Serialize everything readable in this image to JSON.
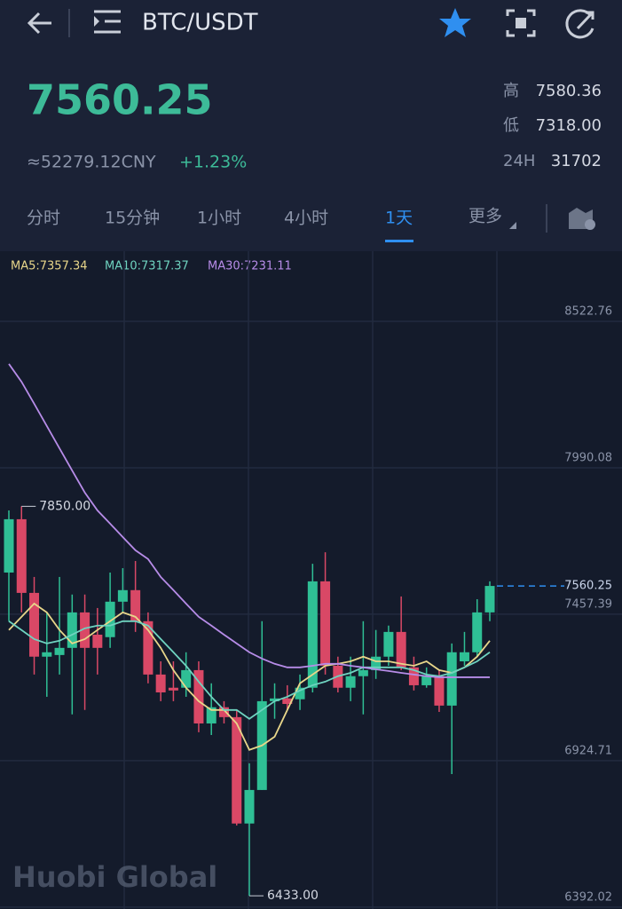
{
  "header": {
    "pair": "BTC/USDT"
  },
  "ticker": {
    "price": "7560.25",
    "cny": "≈52279.12CNY",
    "change": "+1.23%",
    "stats": [
      {
        "label": "高",
        "value": "7580.36"
      },
      {
        "label": "低",
        "value": "7318.00"
      },
      {
        "label": "24H",
        "value": "31702"
      }
    ]
  },
  "tabs": [
    "分时",
    "15分钟",
    "1小时",
    "4小时",
    "1天",
    "更多"
  ],
  "watermark": "Huobi Global",
  "chart_data": {
    "type": "candlestick",
    "open": [
      7609,
      7803,
      7535,
      7303,
      7309,
      7335,
      7464,
      7383,
      7374,
      7503,
      7545,
      7432,
      7238,
      7190,
      7190,
      7254,
      7060,
      7119,
      7083,
      6696,
      6818,
      7141,
      7151,
      7148,
      7190,
      7577,
      7270,
      7190,
      7232,
      7254,
      7303,
      7393,
      7264,
      7199,
      7232,
      7125,
      7286,
      7319,
      7464
    ],
    "high": [
      7835,
      7850,
      7593,
      7464,
      7593,
      7529,
      7529,
      7480,
      7609,
      7625,
      7651,
      7464,
      7286,
      7286,
      7319,
      7286,
      7206,
      7141,
      7109,
      6915,
      7432,
      7206,
      7199,
      7238,
      7641,
      7683,
      7303,
      7303,
      7432,
      7400,
      7416,
      7522,
      7303,
      7264,
      7254,
      7351,
      7393,
      7512,
      7577
    ],
    "low": [
      7432,
      7464,
      7238,
      7157,
      7238,
      7093,
      7109,
      7238,
      7335,
      7464,
      7393,
      7206,
      7141,
      7141,
      7157,
      7028,
      7018,
      7060,
      6689,
      6433,
      6818,
      7077,
      7109,
      7109,
      7173,
      7238,
      7173,
      7141,
      7093,
      7222,
      7270,
      7254,
      7180,
      7190,
      7102,
      6876,
      7270,
      7303,
      7432
    ],
    "close": [
      7803,
      7535,
      7303,
      7319,
      7335,
      7464,
      7335,
      7335,
      7503,
      7545,
      7432,
      7238,
      7173,
      7180,
      7254,
      7060,
      7119,
      7083,
      6696,
      6818,
      7141,
      7151,
      7131,
      7190,
      7577,
      7270,
      7190,
      7232,
      7254,
      7303,
      7393,
      7264,
      7199,
      7232,
      7125,
      7319,
      7319,
      7464,
      7560.25
    ],
    "up_color": "#2fbf95",
    "down_color": "#d94866",
    "series": [
      {
        "name": "MA5:7357.34",
        "color": "#e8d68a",
        "values": [
          7400,
          7448,
          7496,
          7464,
          7400,
          7351,
          7367,
          7400,
          7432,
          7464,
          7448,
          7400,
          7335,
          7254,
          7190,
          7141,
          7109,
          7109,
          7060,
          6964,
          6980,
          7012,
          7109,
          7206,
          7238,
          7270,
          7277,
          7286,
          7303,
          7286,
          7286,
          7277,
          7270,
          7286,
          7254,
          7244,
          7264,
          7303,
          7361
        ]
      },
      {
        "name": "MA10:7317.37",
        "color": "#6fd3c0",
        "values": [
          7432,
          7400,
          7367,
          7351,
          7361,
          7383,
          7406,
          7416,
          7416,
          7432,
          7432,
          7416,
          7367,
          7319,
          7270,
          7212,
          7157,
          7109,
          7109,
          7077,
          7109,
          7141,
          7157,
          7180,
          7199,
          7212,
          7232,
          7244,
          7264,
          7264,
          7264,
          7264,
          7254,
          7238,
          7232,
          7244,
          7264,
          7286,
          7319
        ]
      },
      {
        "name": "MA30:7231.11",
        "color": "#b78ce8",
        "values": [
          8368,
          8303,
          8223,
          8142,
          8061,
          7980,
          7900,
          7835,
          7787,
          7738,
          7690,
          7658,
          7593,
          7545,
          7496,
          7448,
          7416,
          7383,
          7351,
          7319,
          7296,
          7277,
          7264,
          7264,
          7270,
          7277,
          7277,
          7270,
          7264,
          7257,
          7251,
          7244,
          7238,
          7232,
          7228,
          7228,
          7228,
          7228,
          7228
        ]
      }
    ],
    "annotations": [
      "7850.00",
      "6433.00"
    ],
    "ylim": [
      6385,
      8778
    ],
    "yticks": [
      8522.76,
      7990.08,
      7457.39,
      6924.71,
      6392.02
    ],
    "grid": true
  }
}
